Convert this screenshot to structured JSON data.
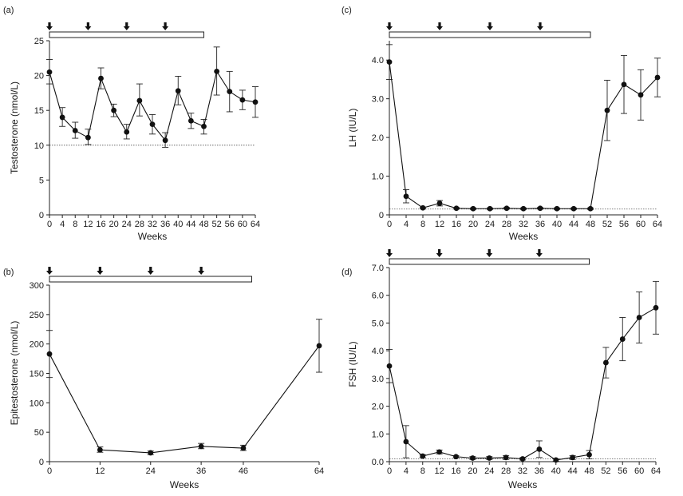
{
  "chart_data": [
    {
      "id": "a",
      "type": "line",
      "panel_label": "(a)",
      "xlabel": "Weeks",
      "ylabel": "Testosterone (nmol/L)",
      "xlim": [
        0,
        64
      ],
      "ylim": [
        0,
        25
      ],
      "xticks": [
        0,
        4,
        8,
        12,
        16,
        20,
        24,
        28,
        32,
        36,
        40,
        44,
        48,
        52,
        56,
        60,
        64
      ],
      "xtick_labels": [
        "0",
        "4",
        "8",
        "12",
        "16",
        "20",
        "24",
        "28",
        "32",
        "36",
        "40",
        "44",
        "48",
        "52",
        "56",
        "60",
        "64"
      ],
      "yticks": [
        0,
        5,
        10,
        15,
        20,
        25
      ],
      "ytick_labels": [
        "0",
        "5",
        "10",
        "15",
        "20",
        "25"
      ],
      "x": [
        0,
        4,
        8,
        12,
        16,
        20,
        24,
        28,
        32,
        36,
        40,
        44,
        48,
        52,
        56,
        60,
        64
      ],
      "y": [
        20.5,
        14.0,
        12.1,
        11.1,
        19.6,
        15.0,
        11.9,
        16.4,
        13.0,
        10.7,
        17.8,
        13.5,
        12.7,
        20.6,
        17.7,
        16.5,
        16.2
      ],
      "err_high": [
        22.3,
        15.4,
        13.3,
        12.3,
        21.1,
        15.9,
        13.0,
        18.8,
        14.4,
        11.8,
        19.9,
        14.6,
        13.7,
        24.1,
        20.6,
        17.9,
        18.4
      ],
      "err_low": [
        18.8,
        12.7,
        11.0,
        10.1,
        18.1,
        14.1,
        10.9,
        14.2,
        11.6,
        9.7,
        15.8,
        12.4,
        11.6,
        17.2,
        14.8,
        15.1,
        14.0
      ],
      "reference_line": 10,
      "arrows_at": [
        0,
        12,
        24,
        36
      ],
      "treatment_bar": [
        0,
        48
      ]
    },
    {
      "id": "b",
      "type": "line",
      "panel_label": "(b)",
      "xlabel": "Weeks",
      "ylabel": "Epitestosterone (nmol/L)",
      "xlim": [
        0,
        64
      ],
      "ylim": [
        0,
        300
      ],
      "xticks": [
        0,
        12,
        24,
        36,
        46,
        64
      ],
      "xtick_labels": [
        "0",
        "12",
        "24",
        "36",
        "46",
        "64"
      ],
      "yticks": [
        0,
        50,
        100,
        150,
        200,
        250,
        300
      ],
      "ytick_labels": [
        "0",
        "50",
        "100",
        "150",
        "200",
        "250",
        "300"
      ],
      "x": [
        0,
        12,
        24,
        36,
        46,
        64
      ],
      "y": [
        183,
        20,
        15,
        26,
        23,
        197
      ],
      "err_high": [
        223,
        25,
        18,
        31,
        28,
        242
      ],
      "err_low": [
        143,
        16,
        12,
        22,
        19,
        152
      ],
      "arrows_at": [
        0,
        12,
        24,
        36
      ],
      "treatment_bar": [
        0,
        48
      ]
    },
    {
      "id": "c",
      "type": "line",
      "panel_label": "(c)",
      "xlabel": "Weeks",
      "ylabel": "LH (IU/L)",
      "xlim": [
        0,
        64
      ],
      "ylim": [
        0,
        4.5
      ],
      "xticks": [
        0,
        4,
        8,
        12,
        16,
        20,
        24,
        28,
        32,
        36,
        40,
        44,
        48,
        52,
        56,
        60,
        64
      ],
      "xtick_labels": [
        "0",
        "4",
        "8",
        "12",
        "16",
        "20",
        "24",
        "28",
        "32",
        "36",
        "40",
        "44",
        "48",
        "52",
        "56",
        "60",
        "64"
      ],
      "yticks": [
        0,
        1,
        2,
        3,
        4
      ],
      "ytick_labels": [
        "0",
        "1.0",
        "2.0",
        "3.0",
        "4.0"
      ],
      "x": [
        0,
        4,
        8,
        12,
        16,
        20,
        24,
        28,
        32,
        36,
        40,
        44,
        48,
        52,
        56,
        60,
        64
      ],
      "y": [
        3.95,
        0.48,
        0.18,
        0.3,
        0.17,
        0.16,
        0.16,
        0.17,
        0.16,
        0.17,
        0.16,
        0.16,
        0.16,
        2.7,
        3.37,
        3.1,
        3.55
      ],
      "err_high": [
        4.4,
        0.65,
        0.2,
        0.37,
        0.19,
        0.18,
        0.18,
        0.19,
        0.18,
        0.19,
        0.18,
        0.18,
        0.18,
        3.48,
        4.12,
        3.75,
        4.05
      ],
      "err_low": [
        3.5,
        0.31,
        0.16,
        0.23,
        0.15,
        0.14,
        0.14,
        0.15,
        0.14,
        0.15,
        0.14,
        0.14,
        0.14,
        1.92,
        2.62,
        2.45,
        3.05
      ],
      "reference_line": 0.15,
      "arrows_at": [
        0,
        12,
        24,
        36
      ],
      "treatment_bar": [
        0,
        48
      ]
    },
    {
      "id": "d",
      "type": "line",
      "panel_label": "(d)",
      "xlabel": "Weeks",
      "ylabel": "FSH (IU/L)",
      "xlim": [
        0,
        64
      ],
      "ylim": [
        0,
        7
      ],
      "xticks": [
        0,
        4,
        8,
        12,
        16,
        20,
        24,
        28,
        32,
        36,
        40,
        44,
        48,
        52,
        56,
        60,
        64
      ],
      "xtick_labels": [
        "0",
        "4",
        "8",
        "12",
        "16",
        "20",
        "24",
        "28",
        "32",
        "36",
        "40",
        "44",
        "48",
        "52",
        "56",
        "60",
        "64"
      ],
      "yticks": [
        0,
        1,
        2,
        3,
        4,
        5,
        6,
        7
      ],
      "ytick_labels": [
        "0.0",
        "1.0",
        "2.0",
        "3.0",
        "4.0",
        "5.0",
        "6.0",
        "7.0"
      ],
      "x": [
        0,
        4,
        8,
        12,
        16,
        20,
        24,
        28,
        32,
        36,
        40,
        44,
        48,
        52,
        56,
        60,
        64
      ],
      "y": [
        3.45,
        0.72,
        0.2,
        0.35,
        0.18,
        0.13,
        0.13,
        0.15,
        0.1,
        0.45,
        0.06,
        0.15,
        0.25,
        3.57,
        4.42,
        5.2,
        5.55
      ],
      "err_high": [
        4.05,
        1.3,
        0.25,
        0.42,
        0.22,
        0.18,
        0.18,
        0.22,
        0.14,
        0.75,
        0.1,
        0.22,
        0.4,
        4.12,
        5.2,
        6.12,
        6.5
      ],
      "err_low": [
        2.85,
        0.14,
        0.15,
        0.28,
        0.14,
        0.08,
        0.08,
        0.08,
        0.06,
        0.15,
        0.02,
        0.08,
        0.1,
        3.02,
        3.64,
        4.28,
        4.6
      ],
      "reference_line": 0.1,
      "arrows_at": [
        0,
        12,
        24,
        36
      ],
      "treatment_bar": [
        0,
        48
      ]
    }
  ]
}
